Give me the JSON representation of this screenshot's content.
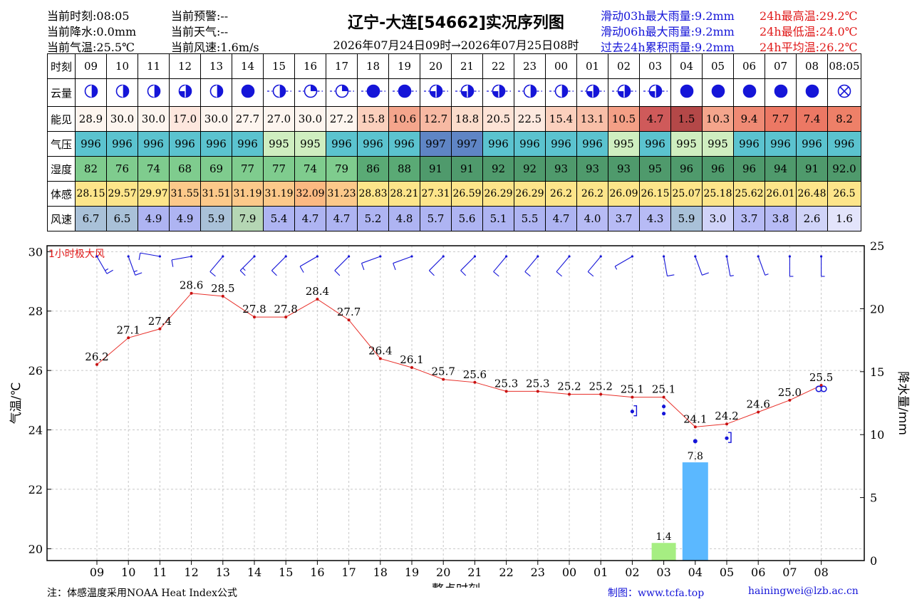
{
  "header": {
    "left": [
      "当前时刻:08:05",
      "当前降水:0.0mm",
      "当前气温:25.5℃"
    ],
    "mid": [
      "当前预警:--",
      "当前天气:--",
      "当前风速:1.6m/s"
    ],
    "title": "辽宁-大连[54662]实况序列图",
    "subtitle": "2026年07月24日09时→2026年07月25日08时",
    "rain": [
      "滑动03h最大雨量:9.2mm",
      "滑动06h最大雨量:9.2mm",
      "过去24h累积雨量:9.2mm"
    ],
    "temp": [
      "24h最高温:29.2℃",
      "24h最低温:24.0℃",
      "24h平均温:26.2℃"
    ]
  },
  "table": {
    "labels": {
      "time": "时刻",
      "cloud": "云量",
      "vis": "能见",
      "pres": "气压",
      "hum": "湿度",
      "feel": "体感",
      "wind": "风速"
    },
    "times": [
      "09",
      "10",
      "11",
      "12",
      "13",
      "14",
      "15",
      "16",
      "17",
      "18",
      "19",
      "20",
      "21",
      "22",
      "23",
      "00",
      "01",
      "02",
      "03",
      "04",
      "05",
      "06",
      "07",
      "08",
      "08:05"
    ],
    "cloud": [
      0.5,
      0.5,
      0.5,
      0.75,
      0.5,
      1,
      0.5,
      0.25,
      0.25,
      1,
      1,
      0.75,
      0.75,
      0.75,
      0.5,
      0.5,
      0.75,
      0.75,
      0.75,
      1,
      1,
      1,
      1,
      1,
      "x"
    ],
    "vis": [
      "28.9",
      "30.0",
      "30.0",
      "17.0",
      "30.0",
      "27.7",
      "27.0",
      "30.0",
      "27.2",
      "15.8",
      "10.6",
      "12.7",
      "18.8",
      "20.5",
      "22.5",
      "15.4",
      "13.1",
      "10.5",
      "4.7",
      "1.5",
      "10.3",
      "9.4",
      "7.7",
      "7.4",
      "8.2"
    ],
    "pres": [
      "996",
      "996",
      "996",
      "996",
      "996",
      "996",
      "995",
      "995",
      "996",
      "996",
      "996",
      "997",
      "997",
      "996",
      "996",
      "996",
      "996",
      "995",
      "996",
      "995",
      "995",
      "996",
      "996",
      "996",
      "996"
    ],
    "hum": [
      "82",
      "76",
      "74",
      "68",
      "69",
      "77",
      "77",
      "74",
      "79",
      "86",
      "88",
      "91",
      "91",
      "92",
      "92",
      "93",
      "93",
      "93",
      "95",
      "96",
      "96",
      "96",
      "94",
      "91",
      "92.0"
    ],
    "feel": [
      "28.15",
      "29.57",
      "29.97",
      "31.55",
      "31.51",
      "31.19",
      "31.19",
      "32.09",
      "31.23",
      "28.83",
      "28.21",
      "27.31",
      "26.59",
      "26.29",
      "26.29",
      "26.2",
      "26.2",
      "26.09",
      "26.15",
      "25.07",
      "25.18",
      "25.62",
      "26.01",
      "26.48",
      "26.5"
    ],
    "wind": [
      "6.7",
      "6.5",
      "4.9",
      "4.9",
      "5.9",
      "7.9",
      "5.4",
      "4.7",
      "4.7",
      "5.2",
      "4.8",
      "5.7",
      "5.6",
      "5.1",
      "5.5",
      "4.7",
      "4.0",
      "3.7",
      "4.3",
      "5.9",
      "3.0",
      "3.7",
      "3.8",
      "2.6",
      "1.6"
    ],
    "colors": {
      "vis": [
        "#fdf5ef",
        "#fdf5ef",
        "#fdf5ef",
        "#fde7de",
        "#fdf5ef",
        "#fdf5ef",
        "#fdf5ef",
        "#fdf5ef",
        "#fdf5ef",
        "#fbd0bd",
        "#f4a58c",
        "#f7b9a3",
        "#fbdccb",
        "#fde3d6",
        "#fde9df",
        "#fbd0bd",
        "#f8bfa8",
        "#f49f86",
        "#cf5a5a",
        "#b44848",
        "#f4a58c",
        "#ef8a74",
        "#ec7864",
        "#ec7864",
        "#ee8068"
      ],
      "pres": [
        "#5bc3cf",
        "#5bc3cf",
        "#5bc3cf",
        "#5bc3cf",
        "#5bc3cf",
        "#5bc3cf",
        "#cfeec0",
        "#cfeec0",
        "#5bc3cf",
        "#5bc3cf",
        "#5bc3cf",
        "#5f85c5",
        "#5f85c5",
        "#5bc3cf",
        "#5bc3cf",
        "#5bc3cf",
        "#5bc3cf",
        "#cfeec0",
        "#5bc3cf",
        "#cfeec0",
        "#cfeec0",
        "#5bc3cf",
        "#5bc3cf",
        "#5bc3cf",
        "#5bc3cf"
      ],
      "hum": [
        "#7fcc8e",
        "#7fcc8e",
        "#7fcc8e",
        "#7fcc8e",
        "#7fcc8e",
        "#7fcc8e",
        "#7fcc8e",
        "#7fcc8e",
        "#7fcc8e",
        "#5aaa75",
        "#5aaa75",
        "#4f9a6c",
        "#4f9a6c",
        "#4f9a6c",
        "#4f9a6c",
        "#4f9a6c",
        "#4f9a6c",
        "#4f9a6c",
        "#4f9a6c",
        "#4f9a6c",
        "#4f9a6c",
        "#4f9a6c",
        "#4f9a6c",
        "#4f9a6c",
        "#4f9a6c"
      ],
      "feel": [
        "#fde58a",
        "#fde58a",
        "#fde58a",
        "#fcc98a",
        "#fcc98a",
        "#fcc98a",
        "#fcc98a",
        "#fbb982",
        "#fcc98a",
        "#fde58a",
        "#fde58a",
        "#fde58a",
        "#fde58a",
        "#fde58a",
        "#fde58a",
        "#fde58a",
        "#fde58a",
        "#fde58a",
        "#fde58a",
        "#fde58a",
        "#fde58a",
        "#fde58a",
        "#fde58a",
        "#fde58a",
        "#fde58a"
      ],
      "wind": [
        "#a9c1d8",
        "#a9c1d8",
        "#aeb4f2",
        "#aeb4f2",
        "#a9c1d8",
        "#b5d6b4",
        "#aeb4f2",
        "#aeb4f2",
        "#aeb4f2",
        "#aeb4f2",
        "#aeb4f2",
        "#aeb4f2",
        "#aeb4f2",
        "#aeb4f2",
        "#aeb4f2",
        "#aeb4f2",
        "#b7bbf5",
        "#b7bbf5",
        "#b7bbf5",
        "#a9c1d8",
        "#d0d3f8",
        "#b7bbf5",
        "#b7bbf5",
        "#d0d3f8",
        "#e3e4fb"
      ]
    }
  },
  "chart_data": {
    "type": "line",
    "x": [
      "09",
      "10",
      "11",
      "12",
      "13",
      "14",
      "15",
      "16",
      "17",
      "18",
      "19",
      "20",
      "21",
      "22",
      "23",
      "00",
      "01",
      "02",
      "03",
      "04",
      "05",
      "06",
      "07",
      "08"
    ],
    "series": [
      {
        "name": "气温",
        "values": [
          26.2,
          27.1,
          27.4,
          28.6,
          28.5,
          27.8,
          27.8,
          28.4,
          27.7,
          26.4,
          26.1,
          25.7,
          25.6,
          25.3,
          25.3,
          25.2,
          25.2,
          25.1,
          25.1,
          24.1,
          24.2,
          24.6,
          25.0,
          25.5
        ],
        "color": "#e8302a"
      },
      {
        "name": "降水量",
        "type": "bar",
        "values": [
          null,
          null,
          null,
          null,
          null,
          null,
          null,
          null,
          null,
          null,
          null,
          null,
          null,
          null,
          null,
          null,
          null,
          null,
          1.4,
          7.8,
          null,
          null,
          null,
          null
        ],
        "colors": {
          "03": "#a6ee82",
          "04": "#5bb8ff"
        }
      }
    ],
    "wind_barbs": {
      "speed": [
        6.7,
        6.5,
        4.9,
        4.9,
        5.9,
        7.9,
        5.4,
        4.7,
        4.7,
        5.2,
        4.8,
        5.7,
        5.6,
        5.1,
        5.5,
        4.7,
        4.0,
        3.7,
        4.3,
        5.9,
        3.0,
        3.7,
        3.8,
        2.6
      ],
      "dir_deg": [
        30,
        20,
        260,
        280,
        320,
        315,
        315,
        300,
        315,
        290,
        290,
        315,
        315,
        320,
        320,
        320,
        320,
        300,
        10,
        20,
        10,
        20,
        360,
        360
      ]
    },
    "weather_symbols": [
      {
        "x": "02",
        "symbol": "shower"
      },
      {
        "x": "03",
        "symbol": "rain"
      },
      {
        "x": "04",
        "symbol": "drizzle"
      },
      {
        "x": "05",
        "symbol": "shower"
      },
      {
        "x": "08",
        "symbol": "haze"
      }
    ],
    "annotation": "1小时极大风",
    "xlabel": "整点时刻",
    "ylabel": "气温/℃",
    "y2label": "降水量/mm",
    "ylim": [
      19.6,
      30.2
    ],
    "y2lim": [
      0,
      25
    ],
    "yticks": [
      20,
      22,
      24,
      26,
      28,
      30
    ],
    "y2ticks": [
      0,
      5,
      10,
      15,
      20,
      25
    ],
    "grid": true
  },
  "footer": {
    "note": "注：体感温度采用NOAA Heat Index公式",
    "maker": "制图：www.tcfa.top",
    "email": "hainingwei@lzb.ac.cn"
  }
}
